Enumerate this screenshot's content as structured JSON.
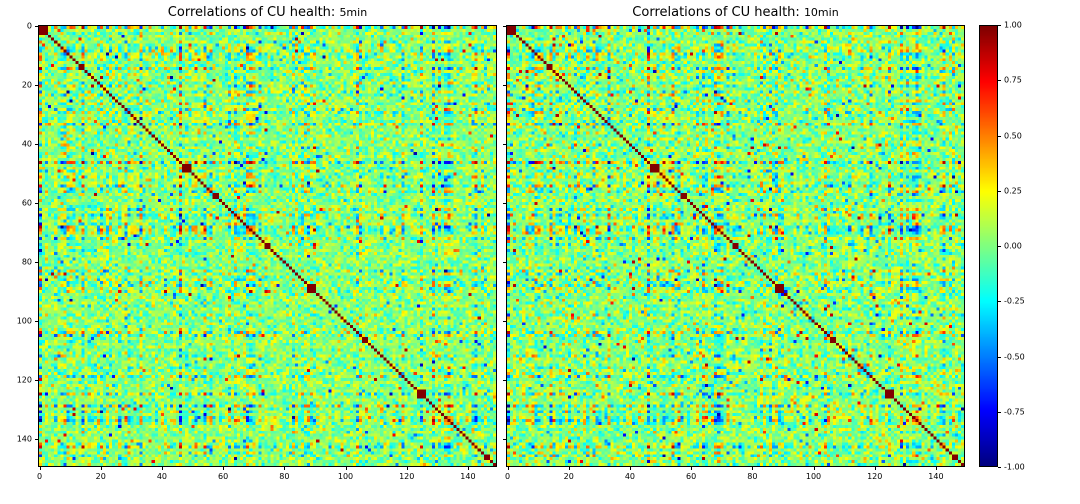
{
  "chart_data": [
    {
      "type": "heatmap",
      "title": "Correlations of CU health: 5min",
      "title_main": "Correlations of CU health: ",
      "title_suffix": "5min",
      "matrix_size": 150,
      "x_ticks": [
        0,
        20,
        40,
        60,
        80,
        100,
        120,
        140
      ],
      "y_ticks": [
        0,
        20,
        40,
        60,
        80,
        100,
        120,
        140
      ],
      "show_y_labels": true,
      "value_range": [
        -1,
        1
      ],
      "colormap": "jet",
      "diagonal_value": 1.0,
      "description": "150x150 symmetric correlation matrix; diagonal = 1 (dark red line), off-diagonal values mostly near 0 (green) with scattered positive (yellow/orange/red) and negative (cyan/blue) speckles and streaks",
      "diagonal_blocks": [
        [
          0,
          3
        ],
        [
          13,
          2
        ],
        [
          27,
          1
        ],
        [
          47,
          3
        ],
        [
          57,
          2
        ],
        [
          74,
          2
        ],
        [
          88,
          3
        ],
        [
          106,
          2
        ],
        [
          116,
          1
        ],
        [
          124,
          3
        ],
        [
          131,
          1
        ],
        [
          146,
          2
        ]
      ],
      "generation": {
        "seed": 101,
        "factor_seed": 7,
        "background_mean": 0.02,
        "background_std": 0.13,
        "hot_spot_prob": 0.02
      }
    },
    {
      "type": "heatmap",
      "title": "Correlations of CU health: 10min",
      "title_main": "Correlations of CU health: ",
      "title_suffix": "10min",
      "matrix_size": 150,
      "x_ticks": [
        0,
        20,
        40,
        60,
        80,
        100,
        120,
        140
      ],
      "y_ticks": [
        0,
        20,
        40,
        60,
        80,
        100,
        120,
        140
      ],
      "show_y_labels": false,
      "value_range": [
        -1,
        1
      ],
      "colormap": "jet",
      "diagonal_value": 1.0,
      "description": "150x150 symmetric correlation matrix at 10min resolution; same variable ordering and diagonal block structure as the 5min panel, slightly stronger off-diagonal speckle",
      "diagonal_blocks": [
        [
          0,
          3
        ],
        [
          13,
          2
        ],
        [
          27,
          1
        ],
        [
          47,
          3
        ],
        [
          57,
          2
        ],
        [
          74,
          2
        ],
        [
          88,
          3
        ],
        [
          106,
          2
        ],
        [
          116,
          1
        ],
        [
          124,
          3
        ],
        [
          131,
          1
        ],
        [
          146,
          2
        ]
      ],
      "generation": {
        "seed": 202,
        "factor_seed": 7,
        "background_mean": 0.02,
        "background_std": 0.14,
        "hot_spot_prob": 0.025
      }
    }
  ],
  "colorbar": {
    "min": -1,
    "max": 1,
    "tick_labels": [
      "1.00",
      "0.75",
      "0.50",
      "0.25",
      "0.00",
      "-0.25",
      "-0.50",
      "-0.75",
      "-1.00"
    ],
    "colormap": "jet"
  }
}
